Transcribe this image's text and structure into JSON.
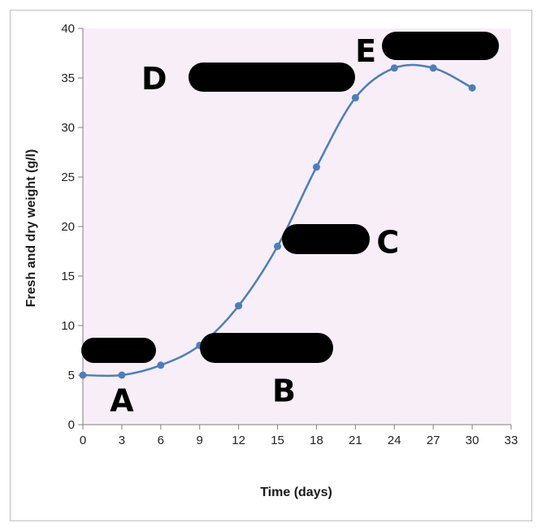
{
  "chart_data": {
    "type": "line",
    "title": "",
    "xlabel": "Time (days)",
    "ylabel": "Fresh and dry weight (g/l)",
    "xlim": [
      0,
      33
    ],
    "ylim": [
      0,
      40
    ],
    "xticks": [
      0,
      3,
      6,
      9,
      12,
      15,
      18,
      21,
      24,
      27,
      30,
      33
    ],
    "yticks": [
      0,
      5,
      10,
      15,
      20,
      25,
      30,
      35,
      40
    ],
    "plot_background": "#f7eef7",
    "line_color": "#4a7ebf",
    "grid": false,
    "legend": "none",
    "series": [
      {
        "x": [
          0,
          3,
          6,
          9,
          12,
          15,
          18,
          21,
          24,
          27,
          30
        ],
        "y": [
          5,
          5,
          6,
          8,
          12,
          18,
          26,
          33,
          36,
          36,
          34
        ]
      }
    ],
    "annotations": [
      {
        "text": "A",
        "x": 3,
        "y": 2.5
      },
      {
        "text": "B",
        "x": 15.5,
        "y": 3.5
      },
      {
        "text": "C",
        "x": 23.5,
        "y": 18.5
      },
      {
        "text": "D",
        "x": 5.5,
        "y": 35
      },
      {
        "text": "E",
        "x": 21.8,
        "y": 37.8
      }
    ]
  }
}
